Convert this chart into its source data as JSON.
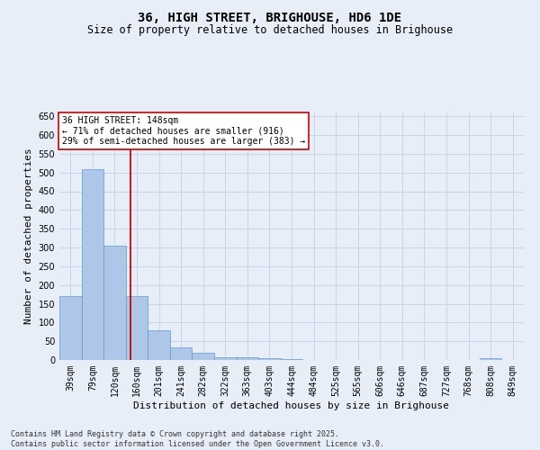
{
  "title": "36, HIGH STREET, BRIGHOUSE, HD6 1DE",
  "subtitle": "Size of property relative to detached houses in Brighouse",
  "xlabel": "Distribution of detached houses by size in Brighouse",
  "ylabel": "Number of detached properties",
  "categories": [
    "39sqm",
    "79sqm",
    "120sqm",
    "160sqm",
    "201sqm",
    "241sqm",
    "282sqm",
    "322sqm",
    "363sqm",
    "403sqm",
    "444sqm",
    "484sqm",
    "525sqm",
    "565sqm",
    "606sqm",
    "646sqm",
    "687sqm",
    "727sqm",
    "768sqm",
    "808sqm",
    "849sqm"
  ],
  "values": [
    170,
    510,
    305,
    170,
    80,
    33,
    20,
    8,
    8,
    5,
    3,
    0,
    0,
    0,
    0,
    0,
    0,
    0,
    0,
    5,
    0
  ],
  "bar_color": "#aec6e8",
  "bar_edge_color": "#5b9bd5",
  "vline_x": 2.72,
  "vline_color": "#cc0000",
  "annotation_text": "36 HIGH STREET: 148sqm\n← 71% of detached houses are smaller (916)\n29% of semi-detached houses are larger (383) →",
  "annotation_box_color": "#ffffff",
  "annotation_box_edge": "#cc0000",
  "ylim": [
    0,
    660
  ],
  "yticks": [
    0,
    50,
    100,
    150,
    200,
    250,
    300,
    350,
    400,
    450,
    500,
    550,
    600,
    650
  ],
  "footnote": "Contains HM Land Registry data © Crown copyright and database right 2025.\nContains public sector information licensed under the Open Government Licence v3.0.",
  "bg_color": "#e8eef8",
  "grid_color": "#c8d4e8",
  "title_fontsize": 10,
  "subtitle_fontsize": 8.5,
  "axis_label_fontsize": 8,
  "tick_fontsize": 7,
  "footnote_fontsize": 6,
  "ann_fontsize": 7
}
